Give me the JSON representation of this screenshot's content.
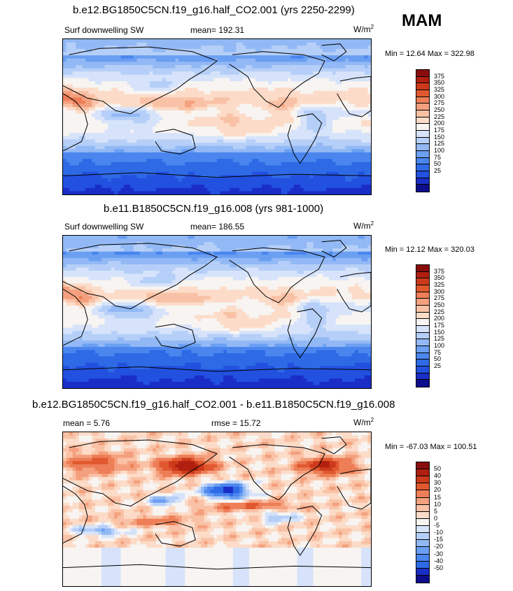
{
  "season": "MAM",
  "units_base": "W/m",
  "units_exp": "2",
  "palettes": {
    "abs": [
      "#0d0d8c",
      "#1a2ec7",
      "#2250df",
      "#2e6ae6",
      "#4a86ee",
      "#6b9ff2",
      "#92b9f5",
      "#b5cff8",
      "#d6e3fa",
      "#f7f4f2",
      "#fcdcc8",
      "#f9c2a6",
      "#f4a07e",
      "#ed7e57",
      "#e1582f",
      "#cc3a1b",
      "#b01f0f",
      "#8a0d0d"
    ],
    "diff": [
      "#0d0d8c",
      "#1a2ec7",
      "#2e6ae6",
      "#4a86ee",
      "#6b9ff2",
      "#92b9f5",
      "#b5cff8",
      "#d6e3fa",
      "#f7f4f2",
      "#fcdcc8",
      "#f9c2a6",
      "#f4a07e",
      "#ed7e57",
      "#e1582f",
      "#cc3a1b",
      "#b01f0f",
      "#8a0d0d"
    ]
  },
  "chart_data": [
    {
      "type": "heatmap",
      "title": "b.e12.BG1850C5CN.f19_g16.half_CO2.001 (yrs 2250-2299)",
      "variable": "Surf downwelling SW",
      "stat_label": "mean= 192.31",
      "minmax": "Min =  12.64 Max = 322.98",
      "units": "W/m2",
      "palette": "abs",
      "colorbar_levels": [
        "375",
        "350",
        "325",
        "300",
        "275",
        "250",
        "225",
        "200",
        "175",
        "150",
        "125",
        "100",
        "75",
        "50",
        "25"
      ]
    },
    {
      "type": "heatmap",
      "title": "b.e11.B1850C5CN.f19_g16.008 (yrs 981-1000)",
      "variable": "Surf downwelling SW",
      "stat_label": "mean= 186.55",
      "minmax": "Min =  12.12 Max = 320.03",
      "units": "W/m2",
      "palette": "abs",
      "colorbar_levels": [
        "375",
        "350",
        "325",
        "300",
        "275",
        "250",
        "225",
        "200",
        "175",
        "150",
        "125",
        "100",
        "75",
        "50",
        "25"
      ]
    },
    {
      "type": "heatmap",
      "title": "b.e12.BG1850C5CN.f19_g16.half_CO2.001 - b.e11.B1850C5CN.f19_g16.008",
      "mean_label": "mean =   5.76",
      "rmse_label": "rmse =   15.72",
      "minmax": "Min = -67.03 Max = 100.51",
      "units": "W/m2",
      "palette": "diff",
      "colorbar_levels": [
        "50",
        "40",
        "30",
        "20",
        "15",
        "10",
        "5",
        "0",
        "-5",
        "-10",
        "-15",
        "-20",
        "-30",
        "-40",
        "-50"
      ]
    }
  ]
}
